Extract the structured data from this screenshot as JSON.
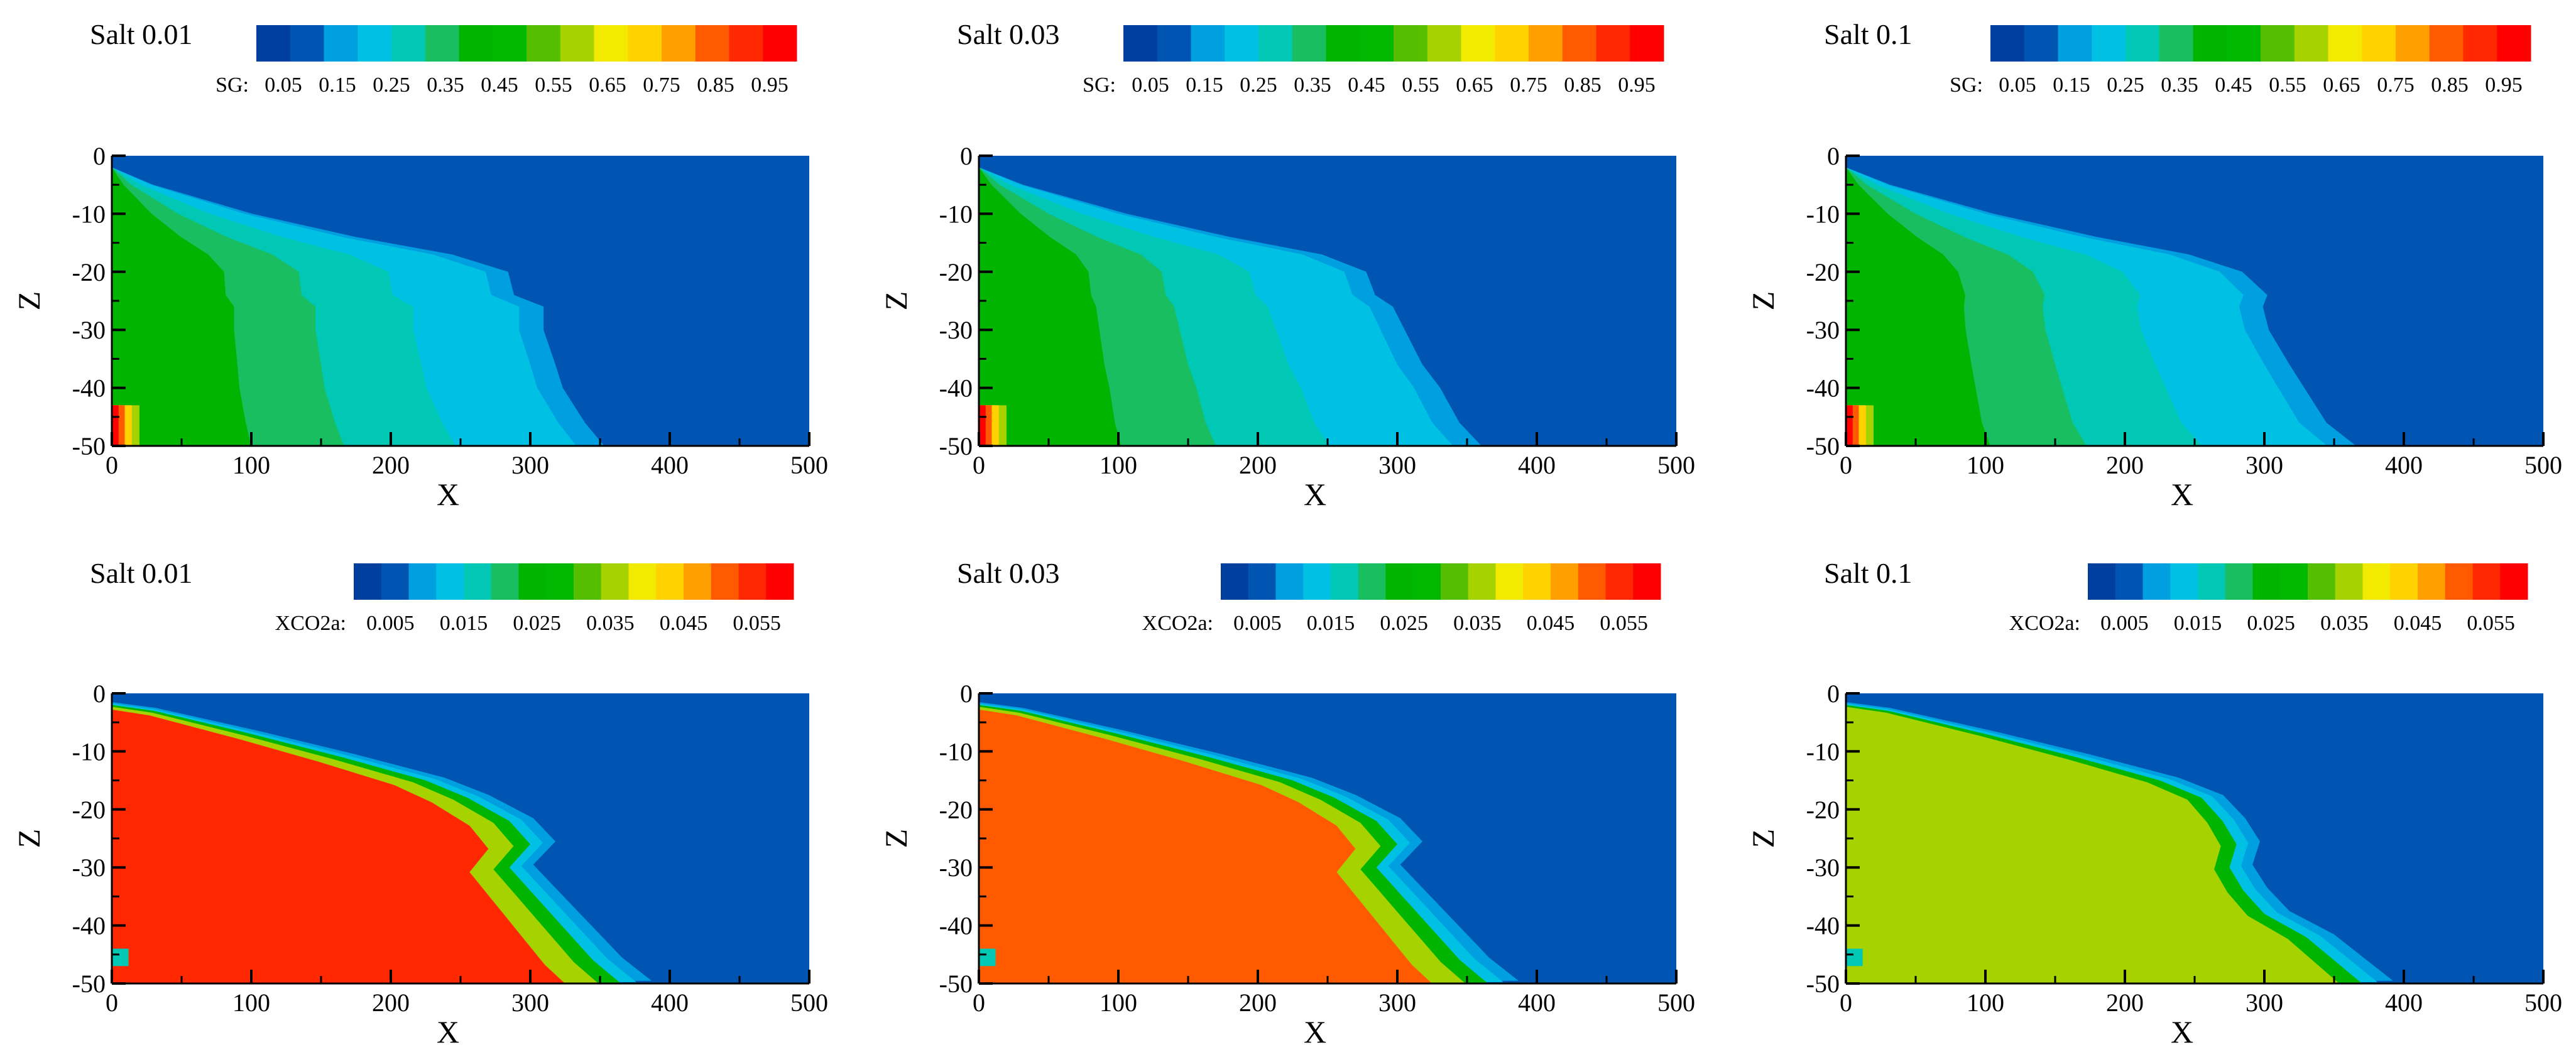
{
  "colorscale": [
    "#003f9e",
    "#0055b3",
    "#00a0e0",
    "#00c0e4",
    "#00c8b5",
    "#18be60",
    "#00b400",
    "#00b800",
    "#55be00",
    "#a6d200",
    "#f2ea00",
    "#ffd200",
    "#ffa000",
    "#ff5a00",
    "#ff2800",
    "#ff0000"
  ],
  "chart_data": [
    {
      "type": "heatmap",
      "panel": "SG salt 0.01",
      "title": "Salt 0.01",
      "legend_label": "SG:",
      "legend_ticks": [
        "0.05",
        "0.15",
        "0.25",
        "0.35",
        "0.45",
        "0.55",
        "0.65",
        "0.75",
        "0.85",
        "0.95"
      ],
      "xlabel": "X",
      "ylabel": "Z",
      "xlim": [
        0,
        500
      ],
      "ylim": [
        -50,
        0
      ],
      "x_ticks": [
        "0",
        "100",
        "200",
        "300",
        "400",
        "500"
      ],
      "y_ticks": [
        "0",
        "-10",
        "-20",
        "-30",
        "-40",
        "-50"
      ],
      "front_x": [
        0,
        28,
        95,
        165,
        230,
        268,
        272,
        292,
        292,
        300,
        305,
        320,
        333
      ],
      "front_z": [
        -2,
        -5,
        -10,
        -14,
        -17,
        -20,
        -24,
        -26,
        -30,
        -36,
        -40,
        -46,
        -50
      ],
      "plume_value": 0.3,
      "near_well_value": 0.7
    },
    {
      "type": "heatmap",
      "panel": "SG salt 0.03",
      "title": "Salt 0.03",
      "legend_label": "SG:",
      "legend_ticks": [
        "0.05",
        "0.15",
        "0.25",
        "0.35",
        "0.45",
        "0.55",
        "0.65",
        "0.75",
        "0.85",
        "0.95"
      ],
      "xlabel": "X",
      "ylabel": "Z",
      "xlim": [
        0,
        500
      ],
      "ylim": [
        -50,
        0
      ],
      "x_ticks": [
        "0",
        "100",
        "200",
        "300",
        "400",
        "500"
      ],
      "y_ticks": [
        "0",
        "-10",
        "-20",
        "-30",
        "-40",
        "-50"
      ],
      "front_x": [
        0,
        30,
        100,
        170,
        232,
        262,
        268,
        280,
        288,
        300,
        312,
        325,
        340
      ],
      "front_z": [
        -2,
        -5,
        -10,
        -14,
        -17,
        -20,
        -24,
        -26,
        -30,
        -36,
        -40,
        -46,
        -50
      ],
      "plume_value": 0.3,
      "near_well_value": 0.7
    },
    {
      "type": "heatmap",
      "panel": "SG salt 0.1",
      "title": "Salt 0.1",
      "legend_label": "SG:",
      "legend_ticks": [
        "0.05",
        "0.15",
        "0.25",
        "0.35",
        "0.45",
        "0.55",
        "0.65",
        "0.75",
        "0.85",
        "0.95"
      ],
      "xlabel": "X",
      "ylabel": "Z",
      "xlim": [
        0,
        500
      ],
      "ylim": [
        -50,
        0
      ],
      "x_ticks": [
        "0",
        "100",
        "200",
        "300",
        "400",
        "500"
      ],
      "y_ticks": [
        "0",
        "-10",
        "-20",
        "-30",
        "-40",
        "-50"
      ],
      "front_x": [
        0,
        30,
        100,
        170,
        232,
        268,
        285,
        282,
        286,
        300,
        310,
        325,
        345
      ],
      "front_z": [
        -2,
        -5,
        -10,
        -14,
        -17,
        -20,
        -24,
        -26,
        -30,
        -36,
        -40,
        -46,
        -50
      ],
      "plume_value": 0.3,
      "near_well_value": 0.7
    },
    {
      "type": "heatmap",
      "panel": "XCO2a salt 0.01",
      "title": "Salt 0.01",
      "legend_label": "XCO2a:",
      "legend_ticks": [
        "0.005",
        "0.015",
        "0.025",
        "0.035",
        "0.045",
        "0.055"
      ],
      "xlabel": "X",
      "ylabel": "Z",
      "xlim": [
        0,
        500
      ],
      "ylim": [
        -50,
        0
      ],
      "x_ticks": [
        "0",
        "100",
        "200",
        "300",
        "400",
        "500"
      ],
      "y_ticks": [
        "0",
        "-10",
        "-20",
        "-30",
        "-40",
        "-50"
      ],
      "front_x": [
        0,
        30,
        100,
        165,
        225,
        255,
        285,
        300,
        285,
        300,
        315,
        330,
        345,
        365
      ],
      "front_z": [
        -2,
        -3,
        -7,
        -11,
        -15,
        -18,
        -22,
        -26,
        -30,
        -34,
        -38,
        -42,
        -46,
        -50
      ],
      "plume_value": 0.052
    },
    {
      "type": "heatmap",
      "panel": "XCO2a salt 0.03",
      "title": "Salt 0.03",
      "legend_label": "XCO2a:",
      "legend_ticks": [
        "0.005",
        "0.015",
        "0.025",
        "0.035",
        "0.045",
        "0.055"
      ],
      "xlabel": "X",
      "ylabel": "Z",
      "xlim": [
        0,
        500
      ],
      "ylim": [
        -50,
        0
      ],
      "x_ticks": [
        "0",
        "100",
        "200",
        "300",
        "400",
        "500"
      ],
      "y_ticks": [
        "0",
        "-10",
        "-20",
        "-30",
        "-40",
        "-50"
      ],
      "front_x": [
        0,
        30,
        100,
        165,
        225,
        255,
        285,
        300,
        285,
        300,
        315,
        330,
        345,
        365
      ],
      "front_z": [
        -2,
        -3,
        -7,
        -11,
        -15,
        -18,
        -22,
        -26,
        -30,
        -34,
        -38,
        -42,
        -46,
        -50
      ],
      "plume_value": 0.048
    },
    {
      "type": "heatmap",
      "panel": "XCO2a salt 0.1",
      "title": "Salt 0.1",
      "legend_label": "XCO2a:",
      "legend_ticks": [
        "0.005",
        "0.015",
        "0.025",
        "0.035",
        "0.045",
        "0.055"
      ],
      "xlabel": "X",
      "ylabel": "Z",
      "xlim": [
        0,
        500
      ],
      "ylim": [
        -50,
        0
      ],
      "x_ticks": [
        "0",
        "100",
        "200",
        "300",
        "400",
        "500"
      ],
      "y_ticks": [
        "0",
        "-10",
        "-20",
        "-30",
        "-40",
        "-50"
      ],
      "front_x": [
        0,
        30,
        100,
        165,
        225,
        255,
        270,
        280,
        275,
        285,
        300,
        330,
        350,
        370
      ],
      "front_z": [
        -2,
        -3,
        -7,
        -11,
        -15,
        -18,
        -22,
        -26,
        -30,
        -34,
        -38,
        -42,
        -46,
        -50
      ],
      "plume_value": 0.034
    }
  ]
}
